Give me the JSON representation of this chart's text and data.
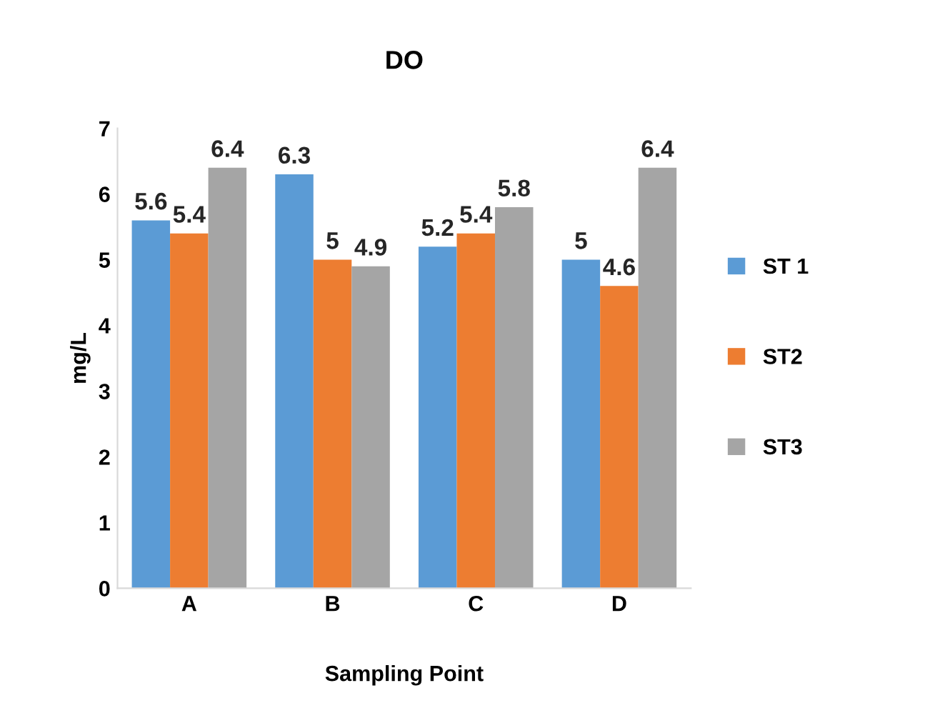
{
  "chart_data": {
    "type": "bar",
    "title": "DO",
    "xlabel": "Sampling Point",
    "ylabel": "mg/L",
    "categories": [
      "A",
      "B",
      "C",
      "D"
    ],
    "series": [
      {
        "name": "ST 1",
        "color": "#5b9bd5",
        "values": [
          5.6,
          6.3,
          5.2,
          5
        ]
      },
      {
        "name": "ST2",
        "color": "#ed7d31",
        "values": [
          5.4,
          5,
          5.4,
          4.6
        ]
      },
      {
        "name": "ST3",
        "color": "#a5a5a5",
        "values": [
          6.4,
          4.9,
          5.8,
          6.4
        ]
      }
    ],
    "ylim": [
      0,
      7
    ],
    "yticks": [
      0,
      1,
      2,
      3,
      4,
      5,
      6,
      7
    ],
    "data_labels": true,
    "legend": "right",
    "grid": false
  }
}
